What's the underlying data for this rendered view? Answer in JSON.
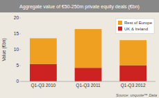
{
  "chart_data": {
    "type": "bar",
    "stacked": true,
    "title": "Aggregate value of €50-250m private equity deals (€bn)",
    "categories": [
      "Q1-Q3 2010",
      "Q1-Q3 2011",
      "Q1-Q3 2012"
    ],
    "series": [
      {
        "name": "UK & Ireland",
        "color": "#cc2222",
        "values": [
          5.5,
          4.3,
          5.1
        ]
      },
      {
        "name": "Rest of Europe",
        "color": "#f0a020",
        "values": [
          8.1,
          12.2,
          7.9
        ]
      }
    ],
    "ylim": [
      0,
      20
    ],
    "yticks": [
      0,
      5,
      10,
      15,
      20
    ],
    "ylabel": "Value (€bn)",
    "source": "Source: unquote™ Data",
    "grid": false,
    "legend": "upper right"
  }
}
